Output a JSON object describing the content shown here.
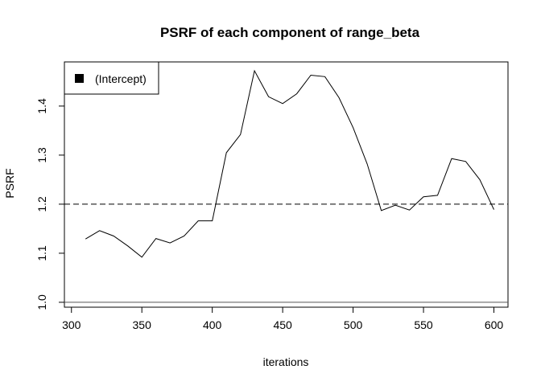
{
  "chart_data": {
    "type": "line",
    "title": "PSRF of each component of range_beta",
    "xlabel": "iterations",
    "ylabel": "PSRF",
    "xlim": [
      295,
      610
    ],
    "ylim": [
      0.99,
      1.49
    ],
    "x_ticks": [
      "300",
      "350",
      "400",
      "450",
      "500",
      "550",
      "600"
    ],
    "y_ticks": [
      "1.0",
      "1.1",
      "1.2",
      "1.3",
      "1.4"
    ],
    "legend_position": "top-left",
    "series": [
      {
        "name": "(Intercept)",
        "color": "#000000",
        "x": [
          310,
          320,
          330,
          340,
          350,
          360,
          370,
          380,
          390,
          400,
          410,
          420,
          430,
          440,
          450,
          460,
          470,
          480,
          490,
          500,
          510,
          520,
          530,
          540,
          550,
          560,
          570,
          580,
          590,
          600
        ],
        "y": [
          1.129,
          1.146,
          1.135,
          1.115,
          1.092,
          1.13,
          1.121,
          1.135,
          1.166,
          1.166,
          1.305,
          1.342,
          1.472,
          1.419,
          1.405,
          1.425,
          1.463,
          1.46,
          1.417,
          1.356,
          1.282,
          1.187,
          1.198,
          1.188,
          1.215,
          1.218,
          1.293,
          1.287,
          1.25,
          1.189
        ]
      }
    ],
    "reference_lines": [
      {
        "y": 1.0,
        "style": "solid",
        "color": "#555555"
      },
      {
        "y": 1.2,
        "style": "dashed",
        "color": "#000000"
      }
    ]
  }
}
